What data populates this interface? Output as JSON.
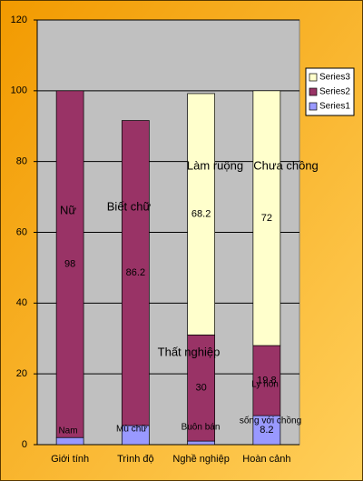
{
  "chart_data": {
    "type": "stacked_bar",
    "categories": [
      "Giới tính",
      "Trình độ",
      "Nghề nghiệp",
      "Hoàn cảnh"
    ],
    "series": [
      {
        "name": "Series1",
        "color": "#9999ff",
        "values": [
          2,
          5.4,
          1,
          8.2
        ],
        "value_labels": [
          null,
          null,
          null,
          "8.2"
        ]
      },
      {
        "name": "Series2",
        "color": "#993366",
        "values": [
          98,
          86.2,
          30,
          19.8
        ],
        "value_labels": [
          "98",
          "86.2",
          "30",
          "19.8"
        ]
      },
      {
        "name": "Series3",
        "color": "#ffffcc",
        "values": [
          null,
          null,
          68.2,
          72
        ],
        "value_labels": [
          null,
          null,
          "68.2",
          "72"
        ]
      }
    ],
    "ylim": [
      0,
      120
    ],
    "yticks": [
      0,
      20,
      40,
      60,
      80,
      100,
      120
    ],
    "grid": true,
    "legend": "right",
    "annotations": [
      "Nữ",
      "Biết chữ",
      "Làm ruộng",
      "Chưa chồng",
      "Thất nghiệp",
      "Ly hôn",
      "Nam",
      "Mù chữ",
      "Buôn bán",
      "sống với chồng"
    ]
  }
}
